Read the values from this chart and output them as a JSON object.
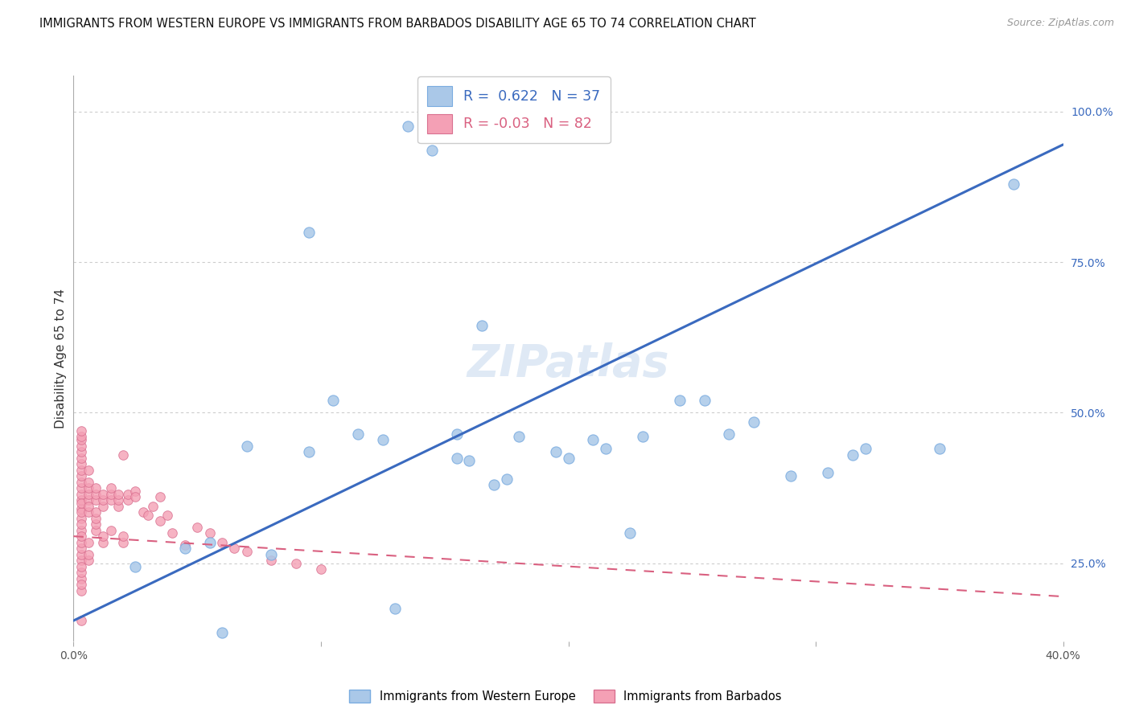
{
  "title": "IMMIGRANTS FROM WESTERN EUROPE VS IMMIGRANTS FROM BARBADOS DISABILITY AGE 65 TO 74 CORRELATION CHART",
  "source": "Source: ZipAtlas.com",
  "ylabel": "Disability Age 65 to 74",
  "xlim": [
    0.0,
    0.4
  ],
  "ylim": [
    0.12,
    1.06
  ],
  "yticks_right": [
    0.25,
    0.5,
    0.75,
    1.0
  ],
  "ytick_labels_right": [
    "25.0%",
    "50.0%",
    "75.0%",
    "100.0%"
  ],
  "blue_R": 0.622,
  "blue_N": 37,
  "pink_R": -0.03,
  "pink_N": 82,
  "blue_color": "#a8c4e0",
  "pink_color": "#f4a0b0",
  "blue_line_color": "#3a6abf",
  "pink_line_color": "#d96080",
  "watermark": "ZIPatlas",
  "blue_line_x0": 0.0,
  "blue_line_y0": 0.155,
  "blue_line_x1": 0.4,
  "blue_line_y1": 0.945,
  "pink_line_x0": 0.0,
  "pink_line_y0": 0.295,
  "pink_line_x1": 0.4,
  "pink_line_y1": 0.195,
  "blue_scatter_x": [
    0.135,
    0.145,
    0.095,
    0.165,
    0.105,
    0.125,
    0.155,
    0.175,
    0.195,
    0.215,
    0.245,
    0.255,
    0.275,
    0.305,
    0.315,
    0.35,
    0.38,
    0.055,
    0.045,
    0.025,
    0.29,
    0.225,
    0.2,
    0.32,
    0.13,
    0.06,
    0.08,
    0.23,
    0.265,
    0.18,
    0.115,
    0.07,
    0.095,
    0.155,
    0.21,
    0.16,
    0.17
  ],
  "blue_scatter_y": [
    0.975,
    0.935,
    0.8,
    0.645,
    0.52,
    0.455,
    0.425,
    0.39,
    0.435,
    0.44,
    0.52,
    0.52,
    0.485,
    0.4,
    0.43,
    0.44,
    0.88,
    0.285,
    0.275,
    0.245,
    0.395,
    0.3,
    0.425,
    0.44,
    0.175,
    0.135,
    0.265,
    0.46,
    0.465,
    0.46,
    0.465,
    0.445,
    0.435,
    0.465,
    0.455,
    0.42,
    0.38
  ],
  "pink_scatter_x": [
    0.003,
    0.003,
    0.003,
    0.003,
    0.003,
    0.003,
    0.003,
    0.003,
    0.003,
    0.003,
    0.003,
    0.003,
    0.003,
    0.003,
    0.003,
    0.003,
    0.003,
    0.003,
    0.003,
    0.003,
    0.003,
    0.003,
    0.003,
    0.003,
    0.003,
    0.003,
    0.003,
    0.003,
    0.003,
    0.003,
    0.006,
    0.006,
    0.006,
    0.006,
    0.006,
    0.006,
    0.006,
    0.006,
    0.006,
    0.006,
    0.009,
    0.009,
    0.009,
    0.009,
    0.009,
    0.009,
    0.009,
    0.012,
    0.012,
    0.012,
    0.012,
    0.012,
    0.015,
    0.015,
    0.015,
    0.015,
    0.018,
    0.018,
    0.018,
    0.02,
    0.02,
    0.022,
    0.022,
    0.025,
    0.025,
    0.028,
    0.03,
    0.032,
    0.035,
    0.038,
    0.04,
    0.045,
    0.05,
    0.055,
    0.06,
    0.065,
    0.07,
    0.08,
    0.09,
    0.1,
    0.035,
    0.02
  ],
  "pink_scatter_y": [
    0.305,
    0.325,
    0.34,
    0.355,
    0.365,
    0.375,
    0.385,
    0.395,
    0.405,
    0.415,
    0.425,
    0.435,
    0.445,
    0.455,
    0.255,
    0.265,
    0.275,
    0.285,
    0.295,
    0.315,
    0.335,
    0.225,
    0.235,
    0.46,
    0.47,
    0.245,
    0.205,
    0.215,
    0.35,
    0.155,
    0.355,
    0.365,
    0.375,
    0.385,
    0.335,
    0.345,
    0.255,
    0.265,
    0.405,
    0.285,
    0.355,
    0.365,
    0.375,
    0.305,
    0.315,
    0.325,
    0.335,
    0.345,
    0.355,
    0.365,
    0.285,
    0.295,
    0.355,
    0.365,
    0.375,
    0.305,
    0.345,
    0.355,
    0.365,
    0.285,
    0.295,
    0.355,
    0.365,
    0.37,
    0.36,
    0.335,
    0.33,
    0.345,
    0.32,
    0.33,
    0.3,
    0.28,
    0.31,
    0.3,
    0.285,
    0.275,
    0.27,
    0.255,
    0.25,
    0.24,
    0.36,
    0.43
  ]
}
